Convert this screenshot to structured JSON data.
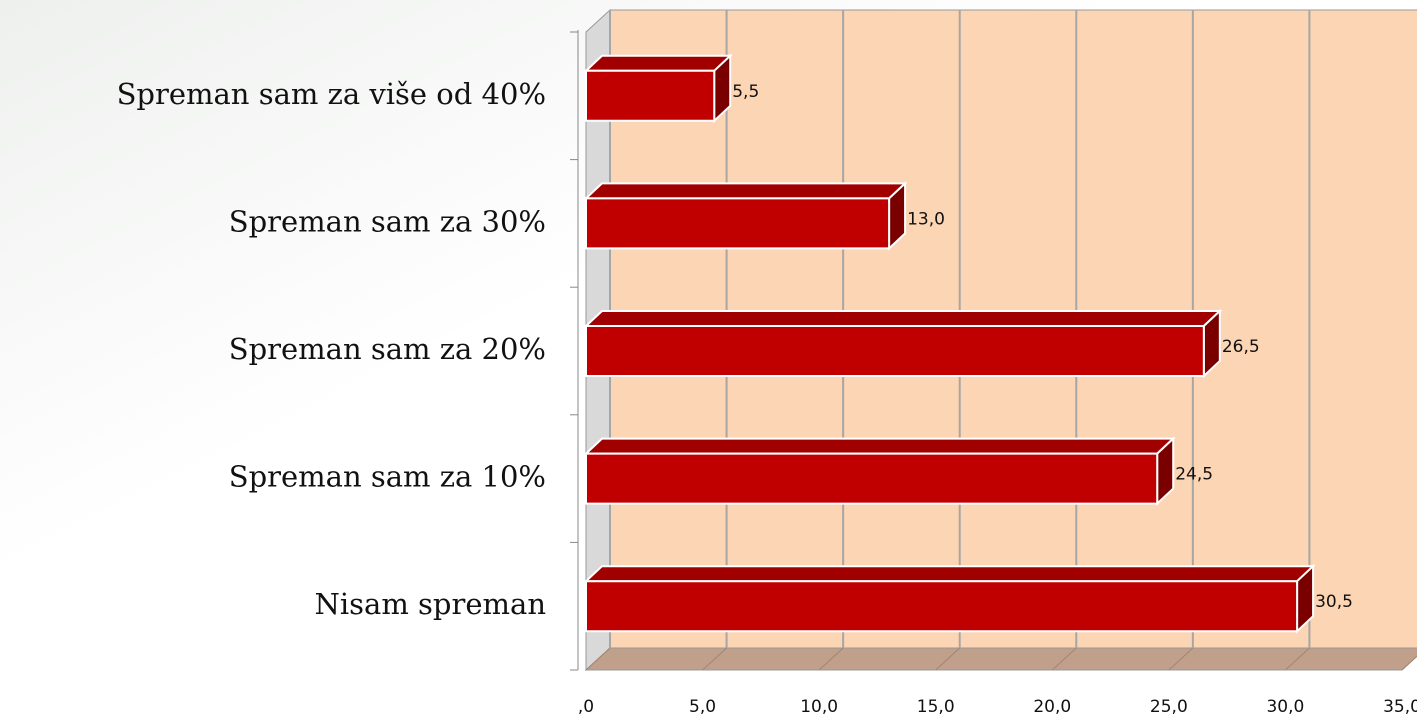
{
  "chart_data": {
    "type": "bar3d",
    "orientation": "horizontal",
    "categories": [
      "Spreman sam za više od 40%",
      "Spreman sam za 30%",
      "Spreman sam za 20%",
      "Spreman sam za 10%",
      "Nisam spreman"
    ],
    "values": [
      5.5,
      13.0,
      26.5,
      24.5,
      30.5
    ],
    "value_labels": [
      "5,5",
      "13,0",
      "26,5",
      "24,5",
      "30,5"
    ],
    "color": "#c00000",
    "xlim": [
      0,
      35
    ],
    "xticks": [
      {
        "value": 0,
        "label": ",0"
      },
      {
        "value": 5,
        "label": "5,0"
      },
      {
        "value": 10,
        "label": "10,0"
      },
      {
        "value": 15,
        "label": "15,0"
      },
      {
        "value": 20,
        "label": "20,0"
      },
      {
        "value": 25,
        "label": "25,0"
      },
      {
        "value": 30,
        "label": "30,0"
      },
      {
        "value": 35,
        "label": "35,0"
      }
    ],
    "grid": true
  }
}
